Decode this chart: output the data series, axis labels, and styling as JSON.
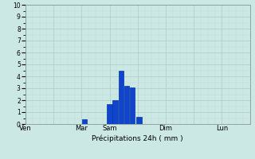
{
  "xlabel": "Précipitations 24h ( mm )",
  "background_color": "#cce8e4",
  "grid_color_major": "#aaccca",
  "grid_color_minor": "#bbdad8",
  "bar_color": "#1144cc",
  "bar_edge_color": "#0033aa",
  "ylim": [
    0,
    10
  ],
  "yticks": [
    0,
    1,
    2,
    3,
    4,
    5,
    6,
    7,
    8,
    9,
    10
  ],
  "xlim": [
    0,
    8
  ],
  "day_labels": [
    "Ven",
    "",
    "Mar",
    "Sam",
    "",
    "Dim",
    "",
    "Lun"
  ],
  "day_positions": [
    0.0,
    1.0,
    2.0,
    3.0,
    4.0,
    5.0,
    6.0,
    7.0
  ],
  "bars": [
    {
      "x": 2.1,
      "height": 0.4
    },
    {
      "x": 3.0,
      "height": 1.7
    },
    {
      "x": 3.2,
      "height": 2.0
    },
    {
      "x": 3.4,
      "height": 4.5
    },
    {
      "x": 3.6,
      "height": 3.2
    },
    {
      "x": 3.8,
      "height": 3.1
    },
    {
      "x": 4.05,
      "height": 0.6
    }
  ],
  "bar_width": 0.18
}
